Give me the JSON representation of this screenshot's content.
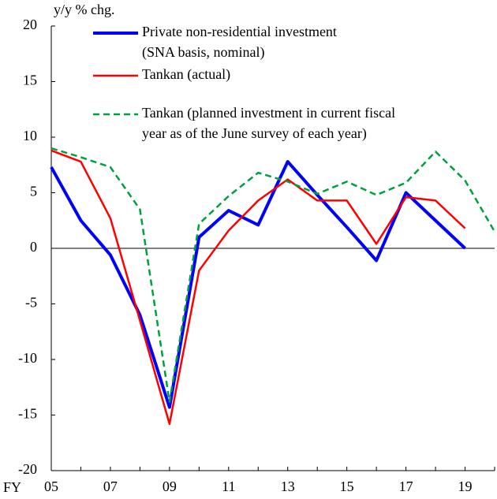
{
  "chart_data": {
    "type": "line",
    "ylabel": "y/y % chg.",
    "xlabel": "FY",
    "categories": [
      "05",
      null,
      "07",
      null,
      "09",
      null,
      "11",
      null,
      "13",
      null,
      "15",
      null,
      "17",
      null,
      "19",
      null
    ],
    "ylim": [
      -20,
      20
    ],
    "yticks": [
      20,
      15,
      10,
      5,
      0,
      -5,
      -10,
      -15,
      -20
    ],
    "grid": false,
    "series": [
      {
        "name": [
          "Private non-residential investment",
          "(SNA basis, nominal)"
        ],
        "color": "#0000ff",
        "dash": false,
        "values": [
          7.3,
          2.5,
          -0.6,
          -6.0,
          -14.3,
          1.0,
          3.4,
          2.1,
          7.8,
          4.8,
          1.9,
          -1.1,
          5.0,
          2.5,
          0.0,
          null
        ]
      },
      {
        "name": [
          "Tankan (actual)"
        ],
        "color": "#ff0000",
        "dash": false,
        "values": [
          8.8,
          7.8,
          2.7,
          -6.5,
          -15.8,
          -2.0,
          1.6,
          4.3,
          6.2,
          4.3,
          4.3,
          0.4,
          4.6,
          4.3,
          1.8,
          null
        ]
      },
      {
        "name": [
          "Tankan (planned investment in current fiscal",
          "year as of the June survey of each year)"
        ],
        "color": "#00a040",
        "dash": true,
        "values": [
          9.0,
          8.2,
          7.3,
          3.5,
          -13.8,
          2.2,
          4.7,
          6.8,
          6.0,
          4.9,
          6.0,
          4.8,
          5.9,
          8.7,
          6.1,
          1.5
        ]
      }
    ]
  }
}
